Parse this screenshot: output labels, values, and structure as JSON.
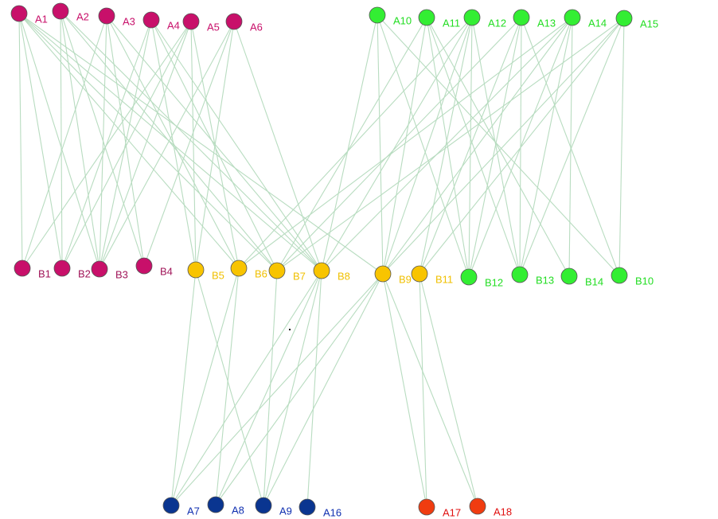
{
  "nodes": [
    {
      "label": "A1"
    },
    {
      "label": "A2"
    },
    {
      "label": "A3"
    },
    {
      "label": "A4"
    },
    {
      "label": "A5"
    },
    {
      "label": "A6"
    },
    {
      "label": "A10"
    },
    {
      "label": "A11"
    },
    {
      "label": "A12"
    },
    {
      "label": "A13"
    },
    {
      "label": "A14"
    },
    {
      "label": "A15"
    },
    {
      "label": "B1"
    },
    {
      "label": "B2"
    },
    {
      "label": "B3"
    },
    {
      "label": "B4"
    },
    {
      "label": "B5"
    },
    {
      "label": "B6"
    },
    {
      "label": "B7"
    },
    {
      "label": "B8"
    },
    {
      "label": "B9"
    },
    {
      "label": "B11"
    },
    {
      "label": "B12"
    },
    {
      "label": "B13"
    },
    {
      "label": "B14"
    },
    {
      "label": "B10"
    },
    {
      "label": "A7"
    },
    {
      "label": "A8"
    },
    {
      "label": "A9"
    },
    {
      "label": "A16"
    },
    {
      "label": "A17"
    },
    {
      "label": "A18"
    }
  ]
}
